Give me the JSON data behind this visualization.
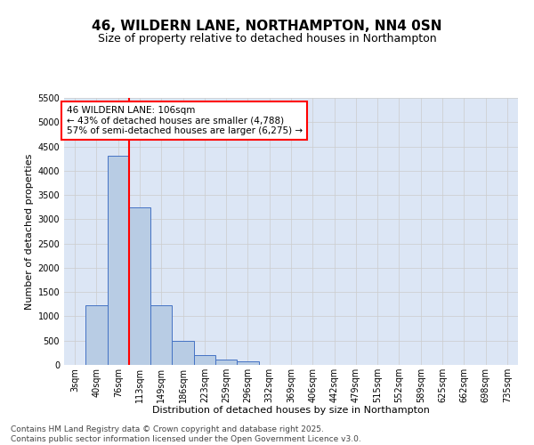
{
  "title": "46, WILDERN LANE, NORTHAMPTON, NN4 0SN",
  "subtitle": "Size of property relative to detached houses in Northampton",
  "xlabel": "Distribution of detached houses by size in Northampton",
  "ylabel": "Number of detached properties",
  "categories": [
    "3sqm",
    "40sqm",
    "76sqm",
    "113sqm",
    "149sqm",
    "186sqm",
    "223sqm",
    "259sqm",
    "296sqm",
    "332sqm",
    "369sqm",
    "406sqm",
    "442sqm",
    "479sqm",
    "515sqm",
    "552sqm",
    "589sqm",
    "625sqm",
    "662sqm",
    "698sqm",
    "735sqm"
  ],
  "values": [
    0,
    1220,
    4300,
    3250,
    1230,
    500,
    210,
    105,
    80,
    0,
    0,
    0,
    0,
    0,
    0,
    0,
    0,
    0,
    0,
    0,
    0
  ],
  "bar_color": "#b8cce4",
  "bar_edge_color": "#4472c4",
  "annotation_box_text": "46 WILDERN LANE: 106sqm\n← 43% of detached houses are smaller (4,788)\n57% of semi-detached houses are larger (6,275) →",
  "annotation_box_color": "white",
  "annotation_box_edge_color": "red",
  "vline_color": "red",
  "vline_x": 2.5,
  "ylim": [
    0,
    5500
  ],
  "yticks": [
    0,
    500,
    1000,
    1500,
    2000,
    2500,
    3000,
    3500,
    4000,
    4500,
    5000,
    5500
  ],
  "grid_color": "#cccccc",
  "background_color": "#dce6f5",
  "footer_line1": "Contains HM Land Registry data © Crown copyright and database right 2025.",
  "footer_line2": "Contains public sector information licensed under the Open Government Licence v3.0.",
  "title_fontsize": 11,
  "subtitle_fontsize": 9,
  "axis_label_fontsize": 8,
  "tick_fontsize": 7,
  "annotation_fontsize": 7.5,
  "footer_fontsize": 6.5
}
